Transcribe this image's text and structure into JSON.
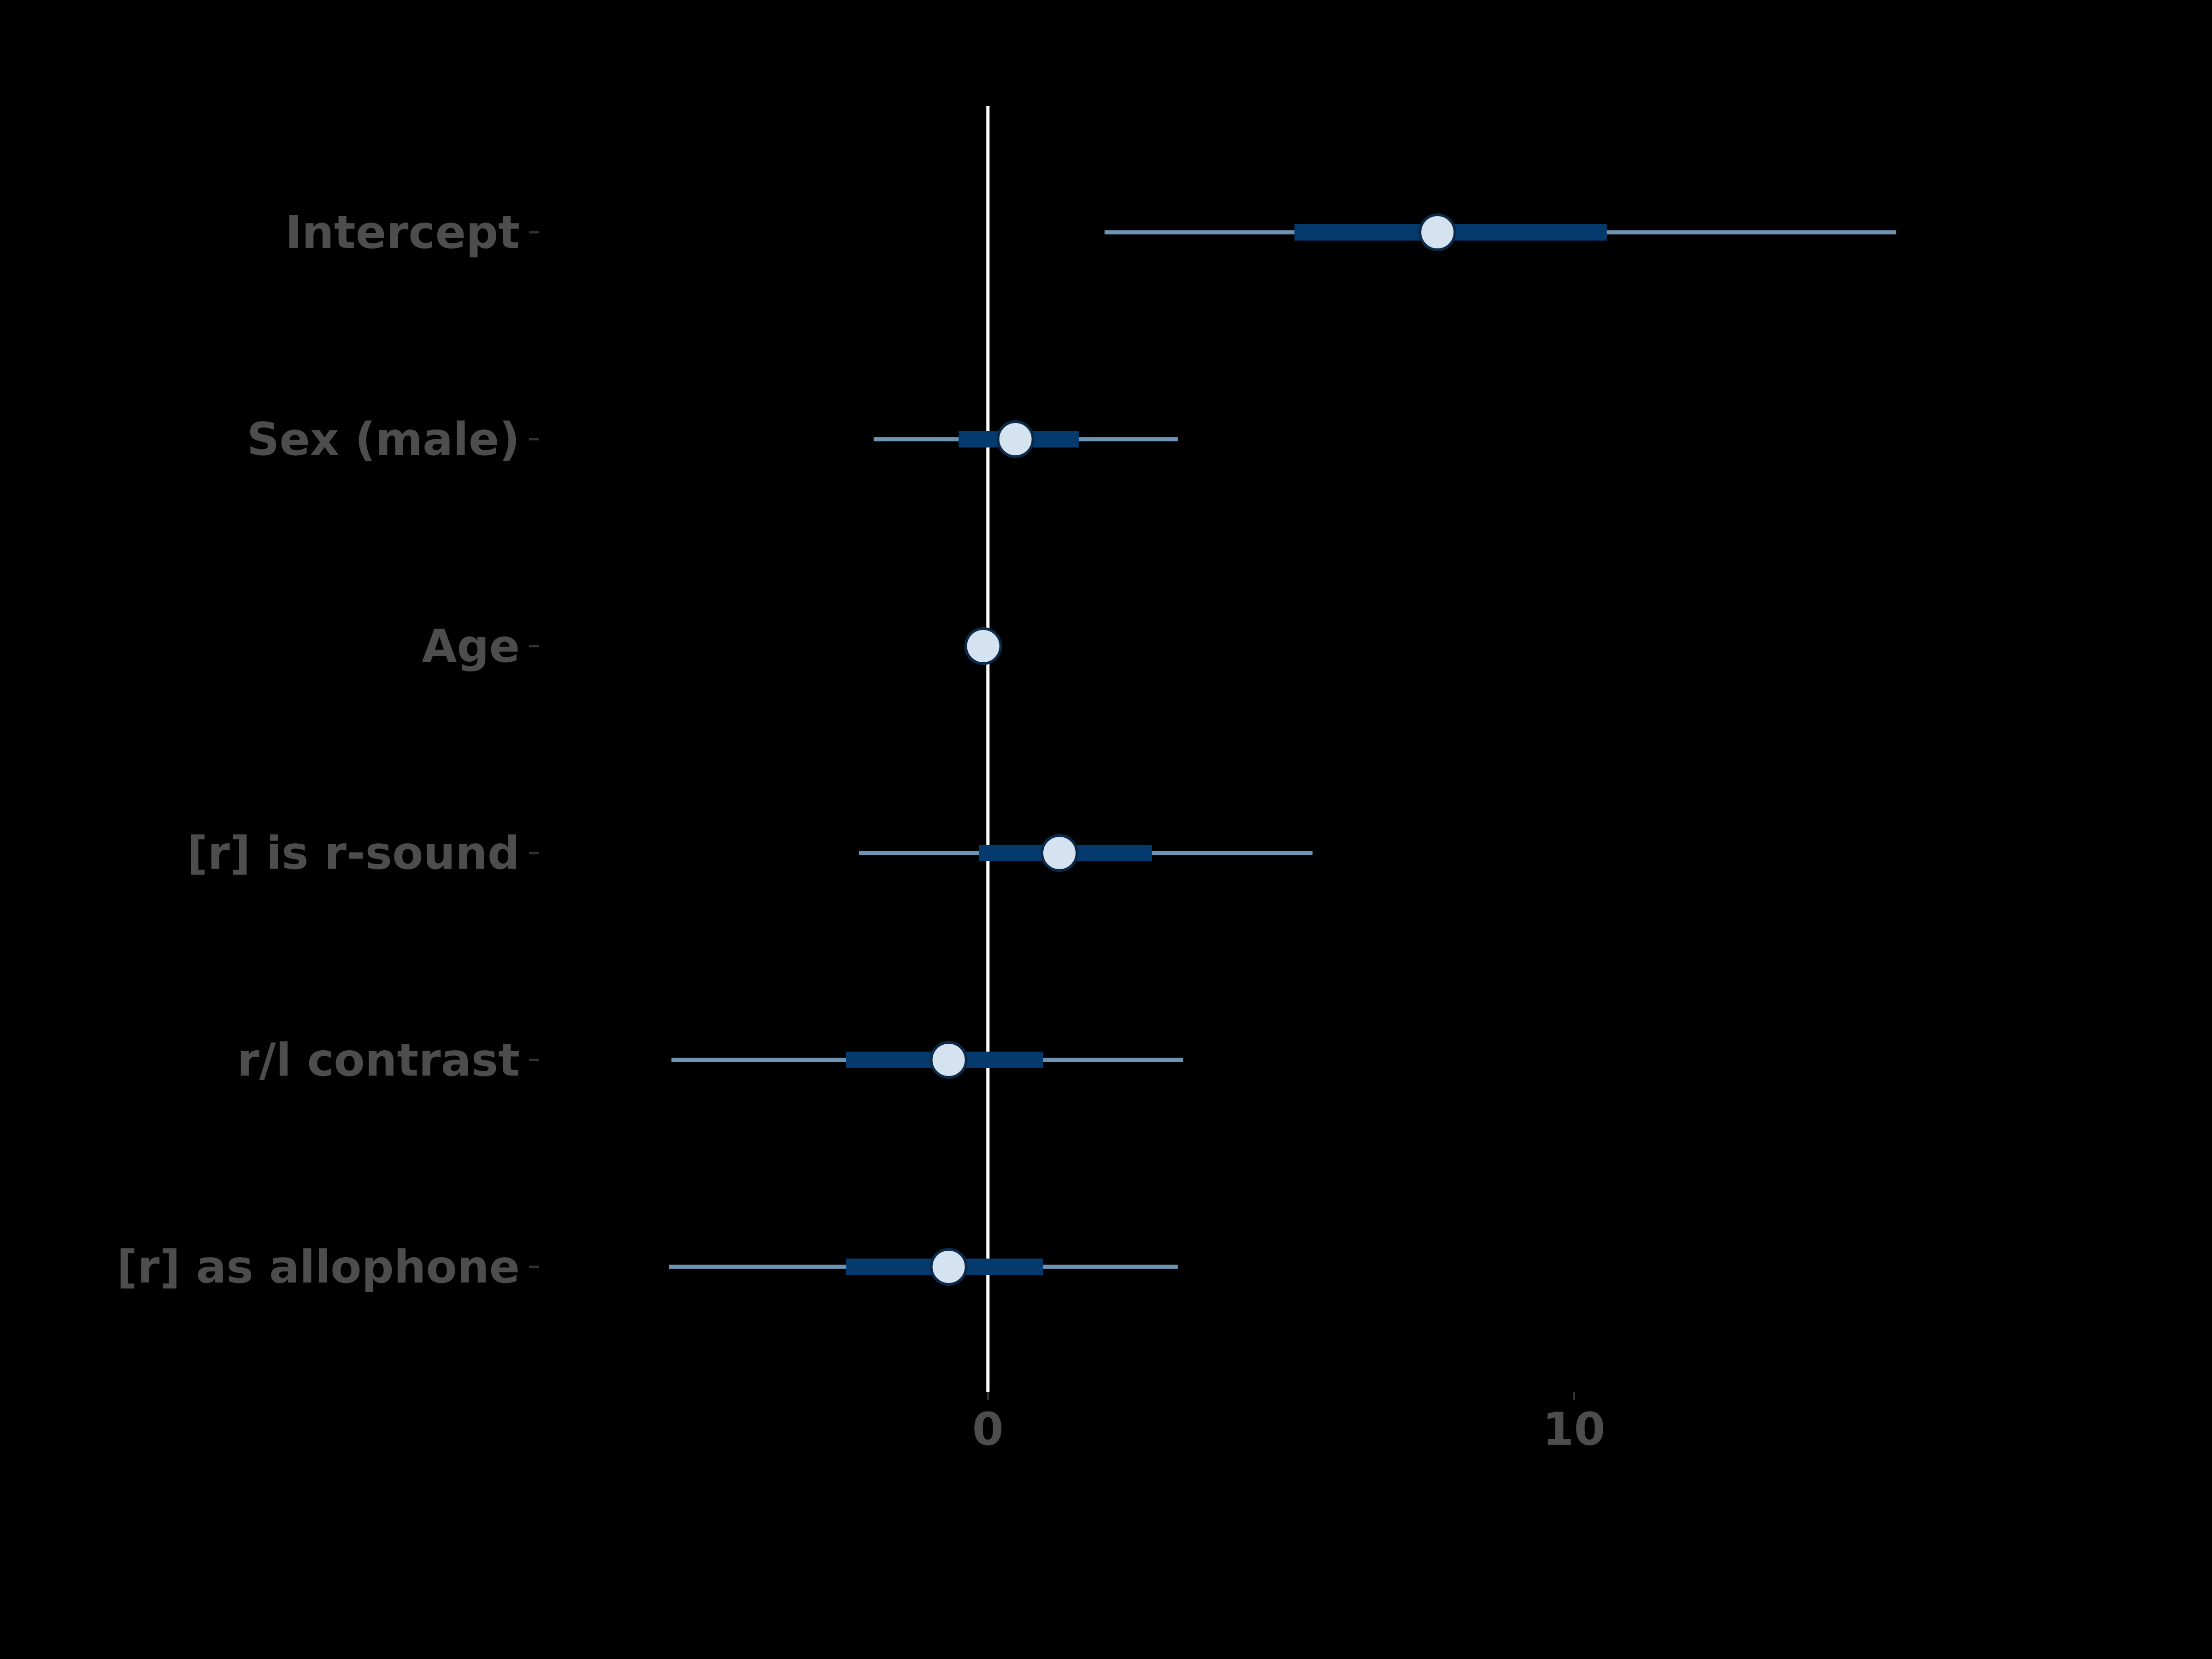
{
  "chart_data": {
    "type": "forest",
    "xlim": [
      -7.5,
      19
    ],
    "x_ticks": [
      0,
      10
    ],
    "x_tick_labels": [
      "0",
      "10"
    ],
    "reference_line": 0,
    "grid": false,
    "categories": [
      "Intercept",
      "Sex (male)",
      "Age",
      "[r] is r-sound",
      "r/l contrast",
      "[r] as allophone"
    ],
    "estimates": [
      7.67,
      0.47,
      -0.08,
      1.22,
      -0.67,
      -0.67
    ],
    "inner_interval": [
      [
        5.23,
        10.56
      ],
      [
        -0.5,
        1.55
      ],
      [
        -0.1,
        -0.06
      ],
      [
        -0.15,
        2.8
      ],
      [
        -2.42,
        0.94
      ],
      [
        -2.42,
        0.94
      ]
    ],
    "outer_interval": [
      [
        1.99,
        15.5
      ],
      [
        -1.95,
        3.24
      ],
      [
        -0.15,
        -0.01
      ],
      [
        -2.2,
        5.54
      ],
      [
        -5.4,
        3.33
      ],
      [
        -5.44,
        3.24
      ]
    ],
    "colors": {
      "background": "#000000",
      "outer_interval": "#6f93b3",
      "inner_interval": "#053a6e",
      "point_fill": "#d5e2ef",
      "point_stroke": "#0b2a4a",
      "reference_line": "#ffffff",
      "tick_label": "#4d4d4d",
      "tick_mark": "#333333"
    }
  }
}
